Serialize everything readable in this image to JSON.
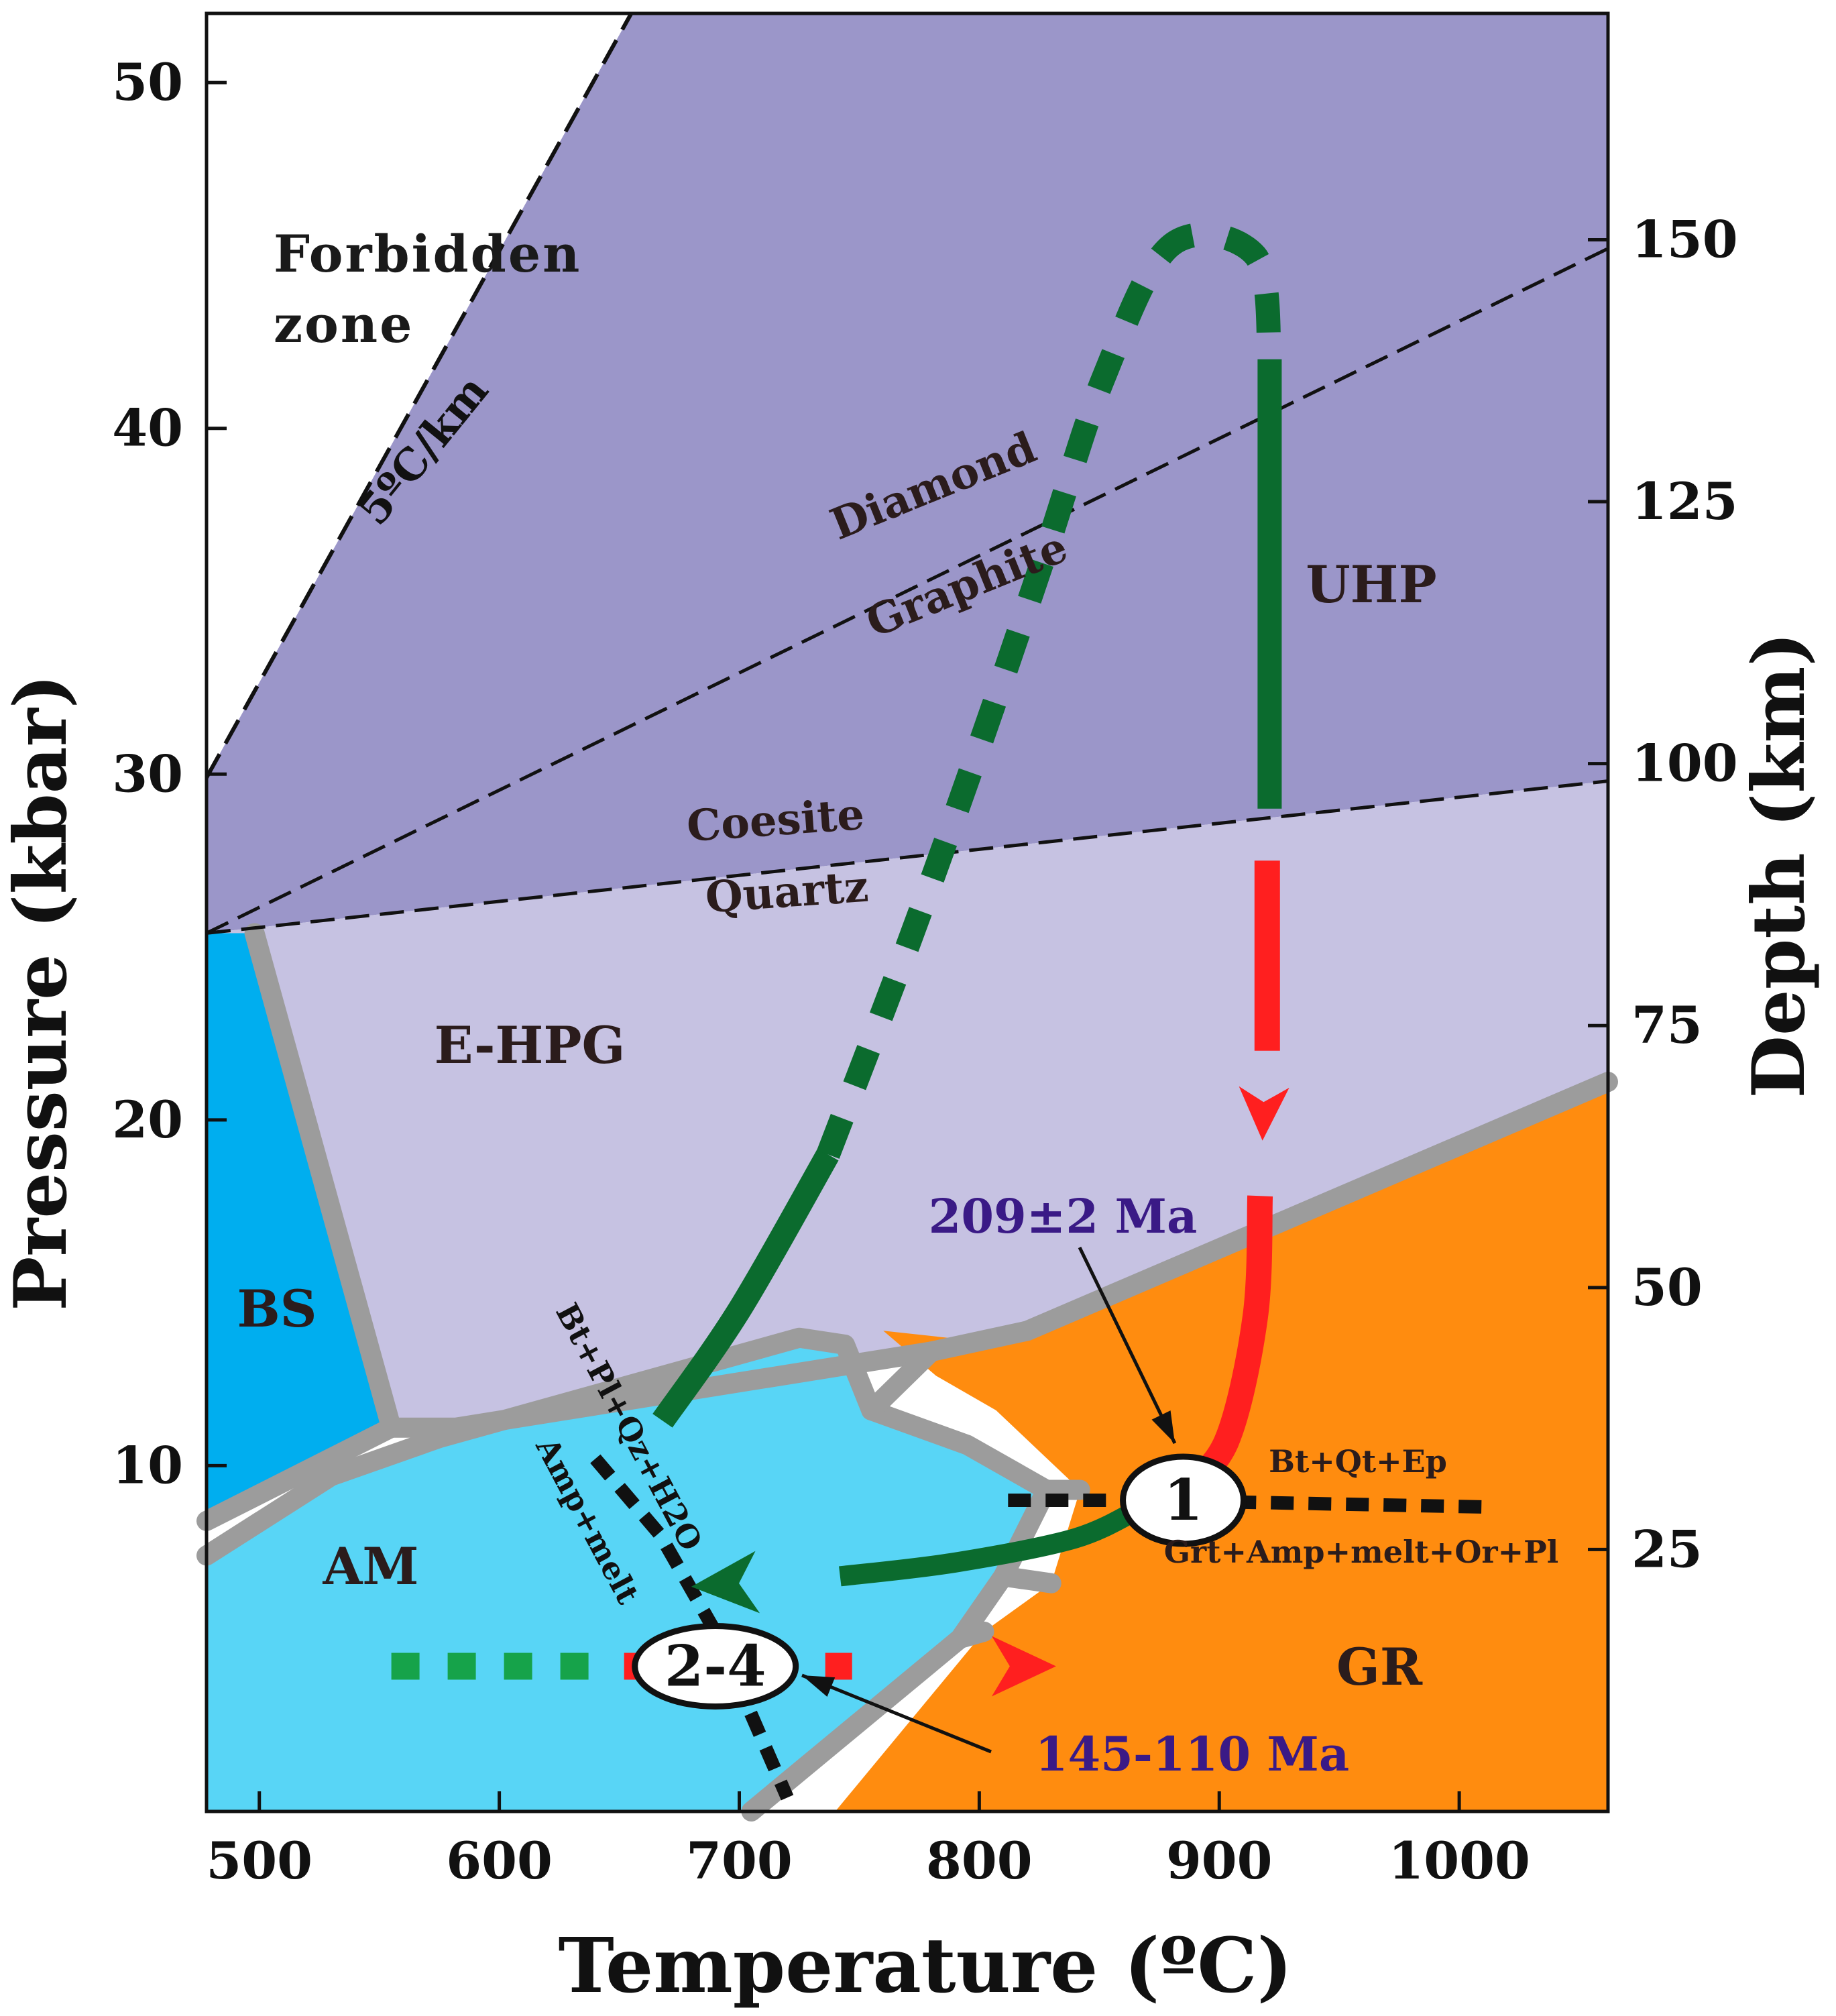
{
  "chart_data": {
    "type": "area",
    "xlabel": "Temperature (ºC)",
    "ylabel": "Pressure (kbar)",
    "y2label": "Depth (km)",
    "xlim": [
      478,
      1062
    ],
    "ylim": [
      0,
      52
    ],
    "x_ticks": [
      "500",
      "600",
      "700",
      "800",
      "900",
      "1000"
    ],
    "y_ticks": [
      "10",
      "20",
      "30",
      "40",
      "50"
    ],
    "y2_ticks": [
      "25",
      "50",
      "75",
      "100",
      "125",
      "150"
    ],
    "y2_tick_values": [
      25,
      50,
      75,
      100,
      125,
      150
    ],
    "y2_km_per_kbar": 3.3,
    "fields": [
      {
        "name": "UHP",
        "label": "UHP",
        "color": "#9b96c9",
        "polygon": [
          [
            478,
            25.4
          ],
          [
            478,
            29.9
          ],
          [
            655,
            52
          ],
          [
            1062,
            52
          ],
          [
            1062,
            29.8
          ]
        ]
      },
      {
        "name": "E-HPG",
        "label": "E-HPG",
        "color": "#c6c2e2",
        "polygon": [
          [
            478,
            25.4
          ],
          [
            1062,
            29.8
          ],
          [
            1062,
            21.1
          ],
          [
            820,
            13.9
          ],
          [
            780,
            13.3
          ],
          [
            582,
            11.1
          ],
          [
            555,
            11.1
          ],
          [
            498,
            25.4
          ]
        ]
      },
      {
        "name": "BS",
        "label": "BS",
        "color": "#00aeef",
        "polygon": [
          [
            478,
            25.4
          ],
          [
            498,
            25.4
          ],
          [
            555,
            11.1
          ],
          [
            545,
            10.8
          ],
          [
            478,
            8.4
          ]
        ]
      },
      {
        "name": "AM",
        "label": "AM",
        "color": "#58d5f6",
        "polygon": [
          [
            478,
            7.4
          ],
          [
            530,
            9.7
          ],
          [
            575,
            10.8
          ],
          [
            725,
            13.7
          ],
          [
            744,
            13.5
          ],
          [
            755,
            11.6
          ],
          [
            795,
            10.6
          ],
          [
            828,
            9.3
          ],
          [
            810,
            6.8
          ],
          [
            792,
            5.0
          ],
          [
            705,
            0
          ],
          [
            478,
            0
          ]
        ]
      },
      {
        "name": "GR",
        "label": "GR",
        "color": "#ff8c0f",
        "polygon": [
          [
            760,
            13.9
          ],
          [
            800,
            13.6
          ],
          [
            835,
            14.1
          ],
          [
            1062,
            21.1
          ],
          [
            1062,
            0
          ],
          [
            740,
            0
          ],
          [
            802,
            5.2
          ],
          [
            830,
            6.6
          ],
          [
            842,
            9.3
          ],
          [
            807,
            11.6
          ],
          [
            782,
            12.6
          ]
        ]
      }
    ],
    "boundaries": [
      {
        "name": "5ºC/km",
        "label": "5ºC/km",
        "style": "dashed",
        "points": [
          [
            478,
            29.9
          ],
          [
            655,
            52
          ]
        ]
      },
      {
        "name": "diamond-graphite",
        "style": "dashed",
        "points": [
          [
            478,
            25.4
          ],
          [
            1062,
            45.2
          ]
        ]
      },
      {
        "name": "coesite-quartz",
        "style": "dashed",
        "points": [
          [
            478,
            25.4
          ],
          [
            1062,
            29.8
          ]
        ]
      },
      {
        "name": "Bt+Pl+Qz+H2O / Amp+melt",
        "style": "dashed",
        "points": [
          [
            640,
            10.2
          ],
          [
            667,
            8.0
          ],
          [
            690,
            5.2
          ],
          [
            720,
            0.4
          ]
        ]
      },
      {
        "name": "Bt+Qt+Ep / Grt+Amp+melt+Or+Pl",
        "style": "dashed",
        "points": [
          [
            812,
            9.0
          ],
          [
            870,
            9.0
          ],
          [
            1015,
            8.8
          ]
        ]
      }
    ],
    "field_boundaries": [
      [
        [
          478,
          7.4
        ],
        [
          530,
          9.7
        ],
        [
          575,
          10.8
        ],
        [
          725,
          13.7
        ],
        [
          744,
          13.5
        ],
        [
          755,
          11.6
        ],
        [
          795,
          10.6
        ],
        [
          828,
          9.3
        ],
        [
          810,
          6.8
        ],
        [
          792,
          5.0
        ],
        [
          705,
          0
        ]
      ],
      [
        [
          498,
          25.4
        ],
        [
          555,
          11.1
        ],
        [
          582,
          11.1
        ],
        [
          780,
          13.3
        ],
        [
          820,
          13.9
        ],
        [
          1062,
          21.1
        ]
      ],
      [
        [
          555,
          11.1
        ],
        [
          478,
          8.4
        ]
      ],
      [
        [
          780,
          13.3
        ],
        [
          755,
          11.6
        ]
      ],
      [
        [
          828,
          9.3
        ],
        [
          842,
          9.3
        ]
      ],
      [
        [
          810,
          6.8
        ],
        [
          830,
          6.6
        ]
      ],
      [
        [
          792,
          5.0
        ],
        [
          802,
          5.2
        ]
      ]
    ],
    "series": [
      {
        "name": "prograde",
        "color": "#0b6b2e",
        "style": "dashed-then-solid",
        "points": [
          [
            668,
            11.3
          ],
          [
            700,
            14.5
          ],
          [
            737,
            19.0
          ],
          [
            770,
            25.0
          ],
          [
            800,
            30.8
          ],
          [
            828,
            36.5
          ],
          [
            852,
            41.5
          ],
          [
            880,
            45.3
          ],
          [
            915,
            45.0
          ],
          [
            921,
            42.0
          ],
          [
            921,
            29.0
          ]
        ]
      },
      {
        "name": "decompression",
        "color": "#ff1f1f",
        "style": "dashed-then-solid",
        "arrow": true,
        "points": [
          [
            920,
            27.5
          ],
          [
            920,
            22.0
          ],
          [
            917,
            17.8
          ],
          [
            915,
            14.3
          ],
          [
            903,
            10.7
          ],
          [
            884,
            9.2
          ]
        ]
      },
      {
        "name": "cooling",
        "color": "#0b6b2e",
        "style": "solid",
        "arrow": true,
        "points": [
          [
            868,
            8.8
          ],
          [
            840,
            7.9
          ],
          [
            790,
            7.2
          ],
          [
            742,
            6.8
          ],
          [
            680,
            6.5
          ]
        ]
      },
      {
        "name": "reheating-green",
        "color": "#16a34a",
        "style": "dashed",
        "points": [
          [
            555,
            4.2
          ],
          [
            640,
            4.2
          ]
        ]
      },
      {
        "name": "reheating-red",
        "color": "#ff1f1f",
        "style": "dashed",
        "arrow": true,
        "points": [
          [
            652,
            4.2
          ],
          [
            750,
            4.2
          ],
          [
            832,
            4.2
          ]
        ]
      }
    ],
    "stages": [
      {
        "label": "1",
        "x": 885,
        "y": 9.0
      },
      {
        "label": "2-4",
        "x": 690,
        "y": 4.2
      }
    ],
    "annotations": [
      {
        "name": "forbidden-zone",
        "lines": [
          "Forbidden",
          "zone"
        ]
      },
      {
        "name": "diamond",
        "text": "Diamond"
      },
      {
        "name": "graphite",
        "text": "Graphite"
      },
      {
        "name": "coesite",
        "text": "Coesite"
      },
      {
        "name": "quartz",
        "text": "Quartz"
      },
      {
        "name": "age-1",
        "text": "209±2 Ma",
        "color": "#3a1a86"
      },
      {
        "name": "age-2",
        "text": "145-110 Ma",
        "color": "#3a1a86"
      },
      {
        "name": "reaction-upper",
        "text": "Bt+Qt+Ep"
      },
      {
        "name": "reaction-lower",
        "text": "Grt+Amp+melt+Or+Pl"
      },
      {
        "name": "reaction-oblique-1",
        "text": "Bt+Pl+Qz+H2O"
      },
      {
        "name": "reaction-oblique-2",
        "text": "Amp+melt"
      }
    ]
  }
}
